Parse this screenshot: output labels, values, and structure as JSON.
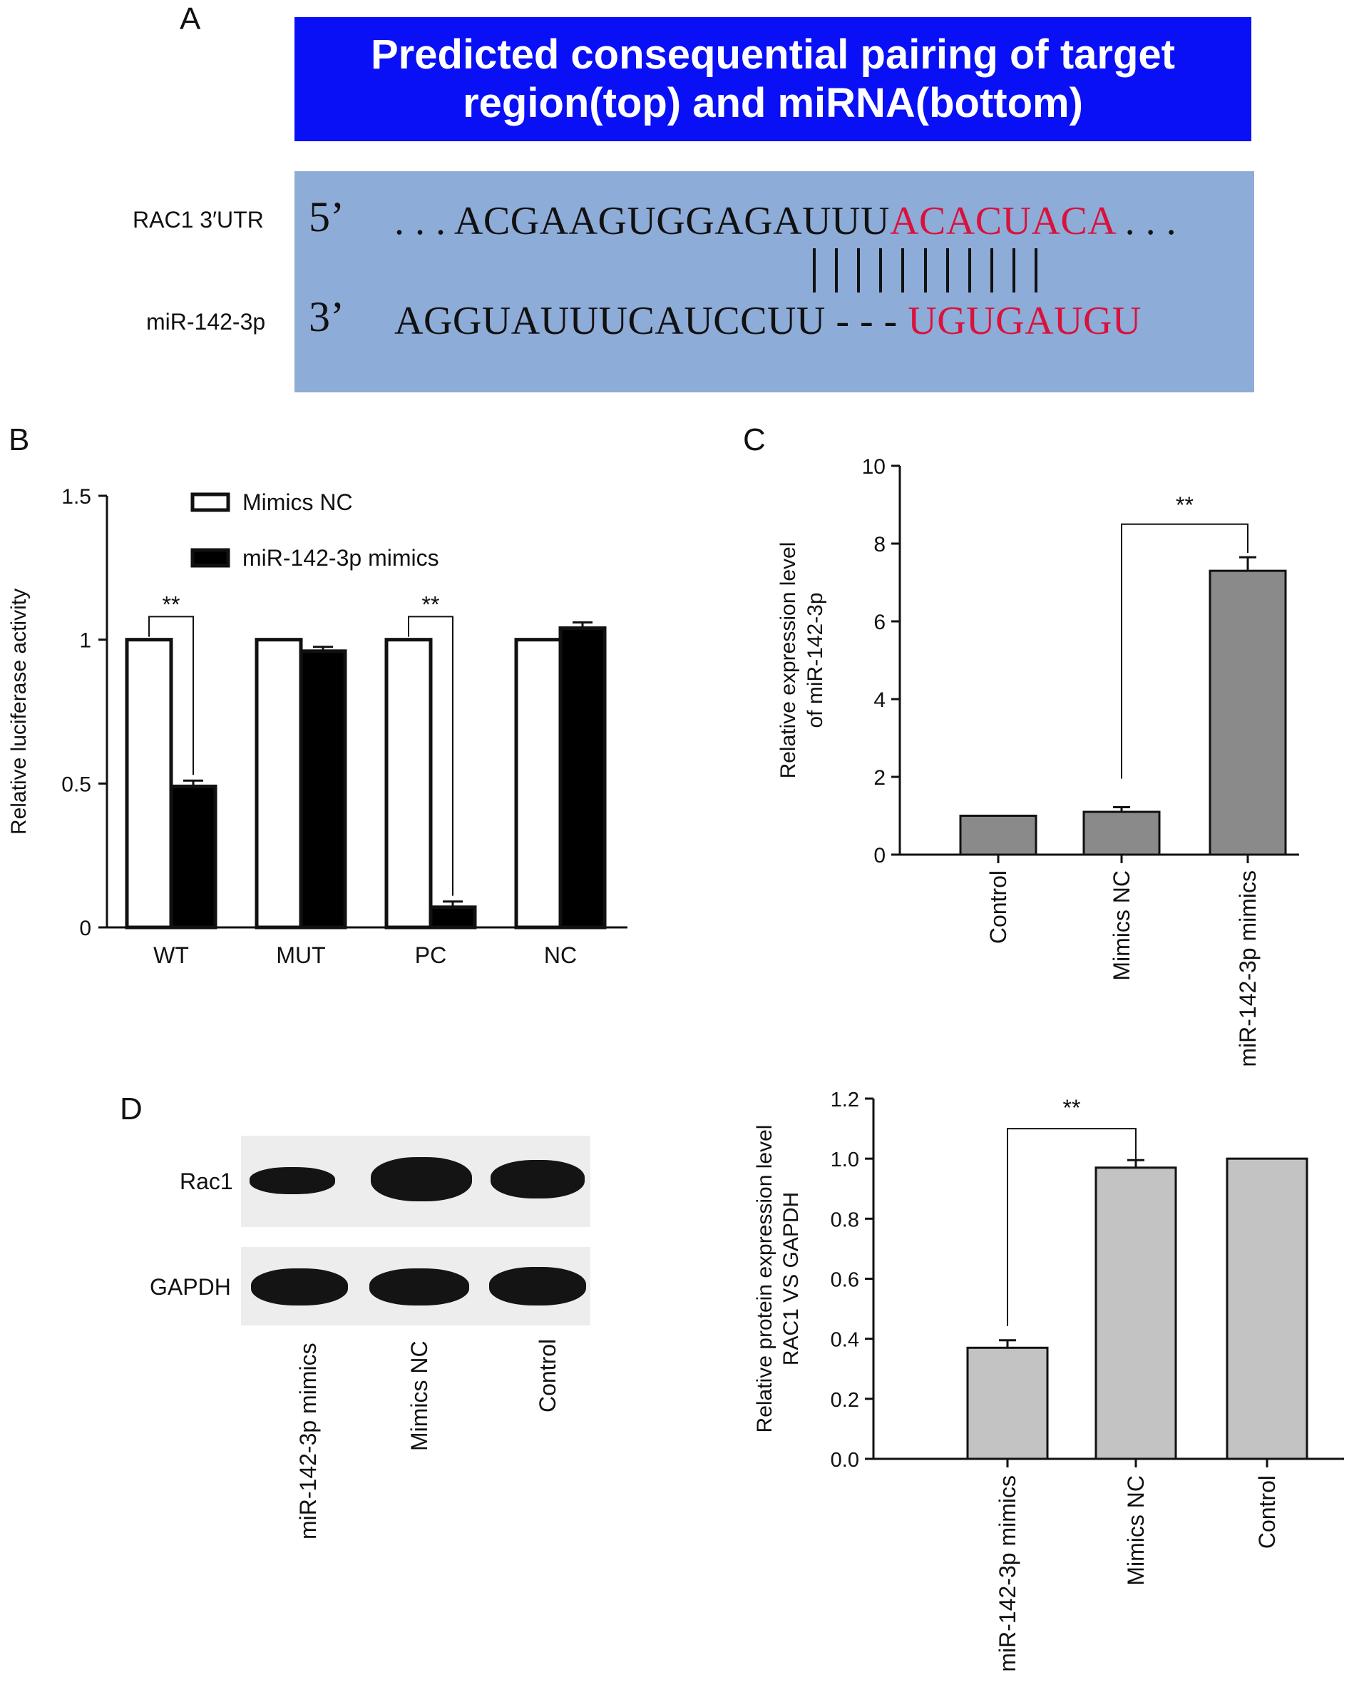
{
  "panels": {
    "A": "A",
    "B": "B",
    "C": "C",
    "D": "D"
  },
  "panel_a": {
    "title_line1": "Predicted consequential pairing of target",
    "title_line2": "region(top) and miRNA(bottom)",
    "top_label": "RAC1 3′UTR",
    "bottom_label": "miR-142-3p",
    "top_end": "5’",
    "bottom_end": "3’",
    "top_seq_black": ". . . ACGAAGUGGAGAUUU",
    "top_seq_red": "ACACUACA",
    "top_seq_tail": ". . .",
    "bottom_seq_black": "AGGUAUUUCAUCCUU - - - ",
    "bottom_seq_red": "UGUGAUGU",
    "pair_count": 11,
    "seed_color": "#d8123c",
    "box_color": "#0a10f5",
    "seq_box_color": "#8eacd8"
  },
  "blot": {
    "rows": [
      "Rac1",
      "GAPDH"
    ],
    "lanes": [
      "miR-142-3p mimics",
      "Mimics NC",
      "Control"
    ],
    "rac1_intensity": [
      0.35,
      0.98,
      1.0
    ],
    "gapdh_intensity": [
      1.0,
      1.0,
      1.0
    ]
  },
  "chart_data": [
    {
      "id": "B",
      "type": "bar",
      "categories": [
        "WT",
        "MUT",
        "PC",
        "NC"
      ],
      "series": [
        {
          "name": "Mimics NC",
          "values": [
            1.0,
            1.0,
            1.0,
            1.0
          ],
          "errors": [
            0,
            0,
            0,
            0
          ],
          "fill": "#ffffff"
        },
        {
          "name": "miR-142-3p mimics",
          "values": [
            0.49,
            0.96,
            0.07,
            1.04
          ],
          "errors": [
            0.02,
            0.015,
            0.02,
            0.02
          ],
          "fill": "#000000"
        }
      ],
      "ylabel": "Relative luciferase activity",
      "ylim": [
        0,
        1.5
      ],
      "yticks": [
        "0",
        "0.5",
        "1",
        "1.5"
      ],
      "yticks_values": [
        0,
        0.5,
        1,
        1.5
      ],
      "legend_position": "top-left",
      "significance": [
        {
          "category": "WT",
          "label": "**"
        },
        {
          "category": "PC",
          "label": "**"
        }
      ]
    },
    {
      "id": "C",
      "type": "bar",
      "categories": [
        "Control",
        "Mimics NC",
        "miR-142-3p mimics"
      ],
      "values": [
        1.0,
        1.1,
        7.3
      ],
      "errors": [
        0,
        0.12,
        0.35
      ],
      "fill": "#8a8a8a",
      "ylabel_line1": "Relative expression level",
      "ylabel_line2": "of miR-142-3p",
      "ylim": [
        0,
        10
      ],
      "yticks": [
        "0",
        "2",
        "4",
        "6",
        "8",
        "10"
      ],
      "yticks_values": [
        0,
        2,
        4,
        6,
        8,
        10
      ],
      "significance": [
        {
          "from": "Mimics NC",
          "to": "miR-142-3p mimics",
          "label": "**"
        }
      ]
    },
    {
      "id": "D",
      "type": "bar",
      "categories": [
        "miR-142-3p mimics",
        "Mimics NC",
        "Control"
      ],
      "values": [
        0.37,
        0.97,
        1.0
      ],
      "errors": [
        0.025,
        0.025,
        0
      ],
      "fill": "#c3c3c3",
      "ylabel_line1": "Relative protein expression level",
      "ylabel_line2": "RAC1 VS GAPDH",
      "ylim": [
        0,
        1.2
      ],
      "yticks": [
        "0.0",
        "0.2",
        "0.4",
        "0.6",
        "0.8",
        "1.0",
        "1.2"
      ],
      "yticks_values": [
        0,
        0.2,
        0.4,
        0.6,
        0.8,
        1.0,
        1.2
      ],
      "significance": [
        {
          "from": "miR-142-3p mimics",
          "to": "Mimics NC",
          "label": "**"
        }
      ]
    }
  ]
}
